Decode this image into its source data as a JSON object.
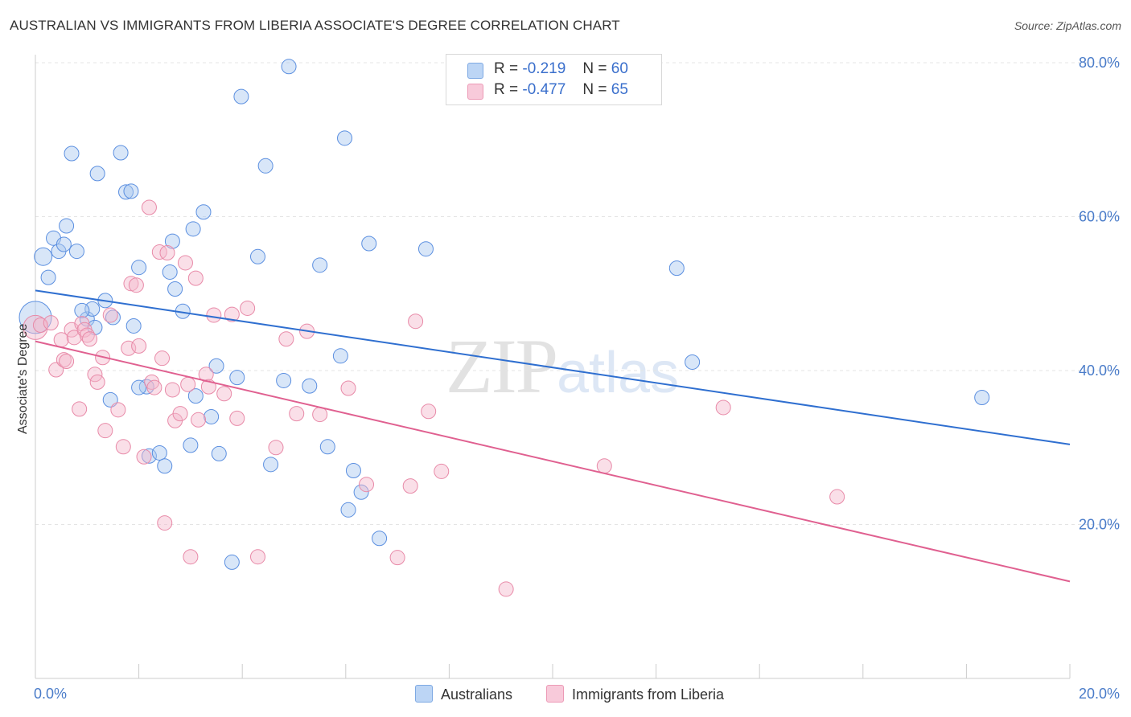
{
  "title": "AUSTRALIAN VS IMMIGRANTS FROM LIBERIA ASSOCIATE'S DEGREE CORRELATION CHART",
  "source": "Source: ZipAtlas.com",
  "watermark": {
    "zip": "ZIP",
    "atlas": "atlas"
  },
  "legend": {
    "rows": [
      {
        "r_label": "R =",
        "r_value": "-0.219",
        "n_label": "N =",
        "n_value": "60",
        "color": "#a8c8f0"
      },
      {
        "r_label": "R =",
        "r_value": "-0.477",
        "n_label": "N =",
        "n_value": "65",
        "color": "#f4b8cc"
      }
    ]
  },
  "bottom_legend": [
    {
      "label": "Australians",
      "color": "#a8c8f0"
    },
    {
      "label": "Immigrants from Liberia",
      "color": "#f4b8cc"
    }
  ],
  "chart_data": {
    "type": "scatter",
    "title": "AUSTRALIAN VS IMMIGRANTS FROM LIBERIA ASSOCIATE'S DEGREE CORRELATION CHART",
    "xlabel": "",
    "ylabel": "Associate's Degree",
    "xlim": [
      0,
      20
    ],
    "ylim": [
      0,
      80
    ],
    "x_tick_labels": [
      "0.0%",
      "20.0%"
    ],
    "y_ticks": [
      20,
      40,
      60,
      80
    ],
    "y_tick_labels": [
      "20.0%",
      "40.0%",
      "60.0%",
      "80.0%"
    ],
    "grid": true,
    "legend_position": "top-center",
    "series": [
      {
        "name": "Australians",
        "color": "#5b8fe0",
        "fill": "#a8c8f0",
        "trend": {
          "x": [
            0,
            20
          ],
          "y": [
            50.4,
            30.4
          ],
          "color": "#2f6fd0"
        },
        "points": [
          [
            0.0,
            46.9,
            20
          ],
          [
            0.15,
            54.8,
            11
          ],
          [
            0.25,
            52.1,
            9
          ],
          [
            0.35,
            57.2,
            9
          ],
          [
            0.45,
            55.5,
            9
          ],
          [
            0.55,
            56.4,
            9
          ],
          [
            0.6,
            58.8,
            9
          ],
          [
            0.8,
            55.5,
            9
          ],
          [
            0.7,
            68.2,
            9
          ],
          [
            1.2,
            65.6,
            9
          ],
          [
            1.65,
            68.3,
            9
          ],
          [
            1.75,
            63.2,
            9
          ],
          [
            1.85,
            63.3,
            9
          ],
          [
            1.0,
            46.7,
            9
          ],
          [
            1.1,
            48.0,
            9
          ],
          [
            1.15,
            45.6,
            9
          ],
          [
            1.35,
            49.1,
            9
          ],
          [
            1.5,
            46.9,
            9
          ],
          [
            1.9,
            45.8,
            9
          ],
          [
            2.0,
            53.4,
            9
          ],
          [
            2.15,
            37.9,
            9
          ],
          [
            1.45,
            36.2,
            9
          ],
          [
            2.2,
            28.9,
            9
          ],
          [
            2.4,
            29.3,
            9
          ],
          [
            2.5,
            27.6,
            9
          ],
          [
            2.6,
            52.8,
            9
          ],
          [
            2.65,
            56.8,
            9
          ],
          [
            2.7,
            50.6,
            9
          ],
          [
            2.85,
            47.7,
            9
          ],
          [
            3.0,
            30.3,
            9
          ],
          [
            3.05,
            58.4,
            9
          ],
          [
            3.1,
            36.7,
            9
          ],
          [
            3.25,
            60.6,
            9
          ],
          [
            3.4,
            34.0,
            9
          ],
          [
            3.5,
            40.6,
            9
          ],
          [
            3.55,
            29.2,
            9
          ],
          [
            3.8,
            15.1,
            9
          ],
          [
            3.9,
            39.1,
            9
          ],
          [
            3.98,
            75.6,
            9
          ],
          [
            4.3,
            54.8,
            9
          ],
          [
            4.45,
            66.6,
            9
          ],
          [
            4.55,
            27.8,
            9
          ],
          [
            4.8,
            38.7,
            9
          ],
          [
            4.9,
            79.5,
            9
          ],
          [
            5.3,
            38.0,
            9
          ],
          [
            5.5,
            53.7,
            9
          ],
          [
            5.65,
            30.1,
            9
          ],
          [
            5.9,
            41.9,
            9
          ],
          [
            5.98,
            70.2,
            9
          ],
          [
            6.05,
            21.9,
            9
          ],
          [
            6.15,
            27.0,
            9
          ],
          [
            6.3,
            24.2,
            9
          ],
          [
            6.45,
            56.5,
            9
          ],
          [
            6.65,
            18.2,
            9
          ],
          [
            7.55,
            55.8,
            9
          ],
          [
            12.4,
            53.3,
            9
          ],
          [
            12.7,
            41.1,
            9
          ],
          [
            18.3,
            36.5,
            9
          ],
          [
            0.9,
            47.8,
            9
          ],
          [
            2.0,
            37.8,
            9
          ]
        ]
      },
      {
        "name": "Immigrants from Liberia",
        "color": "#e88aa8",
        "fill": "#f4b8cc",
        "trend": {
          "x": [
            0,
            20
          ],
          "y": [
            43.8,
            12.6
          ],
          "color": "#e06090"
        },
        "points": [
          [
            0.0,
            45.6,
            15
          ],
          [
            0.1,
            45.9,
            9
          ],
          [
            0.3,
            46.2,
            9
          ],
          [
            0.4,
            40.1,
            9
          ],
          [
            0.5,
            44.0,
            9
          ],
          [
            0.55,
            41.4,
            9
          ],
          [
            0.6,
            41.2,
            9
          ],
          [
            0.7,
            45.3,
            9
          ],
          [
            0.75,
            44.3,
            9
          ],
          [
            0.85,
            35.0,
            9
          ],
          [
            0.9,
            46.1,
            9
          ],
          [
            0.95,
            45.3,
            9
          ],
          [
            1.0,
            44.6,
            9
          ],
          [
            1.05,
            44.1,
            9
          ],
          [
            1.15,
            39.5,
            9
          ],
          [
            1.2,
            38.5,
            9
          ],
          [
            1.3,
            41.7,
            9
          ],
          [
            1.35,
            32.2,
            9
          ],
          [
            1.45,
            47.2,
            9
          ],
          [
            1.6,
            34.9,
            9
          ],
          [
            1.7,
            30.1,
            9
          ],
          [
            1.8,
            42.9,
            9
          ],
          [
            1.85,
            51.3,
            9
          ],
          [
            1.95,
            51.1,
            9
          ],
          [
            2.0,
            43.2,
            9
          ],
          [
            2.1,
            28.8,
            9
          ],
          [
            2.2,
            61.2,
            9
          ],
          [
            2.25,
            38.5,
            9
          ],
          [
            2.3,
            37.8,
            9
          ],
          [
            2.4,
            55.4,
            9
          ],
          [
            2.45,
            41.6,
            9
          ],
          [
            2.5,
            20.2,
            9
          ],
          [
            2.55,
            55.3,
            9
          ],
          [
            2.65,
            37.5,
            9
          ],
          [
            2.7,
            33.5,
            9
          ],
          [
            2.8,
            34.4,
            9
          ],
          [
            2.9,
            54.0,
            9
          ],
          [
            2.95,
            38.2,
            9
          ],
          [
            3.0,
            15.8,
            9
          ],
          [
            3.1,
            52.0,
            9
          ],
          [
            3.15,
            33.6,
            9
          ],
          [
            3.3,
            39.5,
            9
          ],
          [
            3.35,
            37.9,
            9
          ],
          [
            3.45,
            47.2,
            9
          ],
          [
            3.65,
            37.0,
            9
          ],
          [
            3.8,
            47.3,
            9
          ],
          [
            3.9,
            33.8,
            9
          ],
          [
            4.1,
            48.1,
            9
          ],
          [
            4.3,
            15.8,
            9
          ],
          [
            4.65,
            30.0,
            9
          ],
          [
            4.85,
            44.1,
            9
          ],
          [
            5.05,
            34.4,
            9
          ],
          [
            5.25,
            45.1,
            9
          ],
          [
            5.5,
            34.3,
            9
          ],
          [
            6.05,
            37.7,
            9
          ],
          [
            6.4,
            25.2,
            9
          ],
          [
            7.0,
            15.7,
            9
          ],
          [
            7.25,
            25.0,
            9
          ],
          [
            7.35,
            46.4,
            9
          ],
          [
            7.6,
            34.7,
            9
          ],
          [
            7.85,
            26.9,
            9
          ],
          [
            9.1,
            11.6,
            9
          ],
          [
            11.0,
            27.6,
            9
          ],
          [
            13.3,
            35.2,
            9
          ],
          [
            15.5,
            23.6,
            9
          ]
        ]
      }
    ]
  }
}
